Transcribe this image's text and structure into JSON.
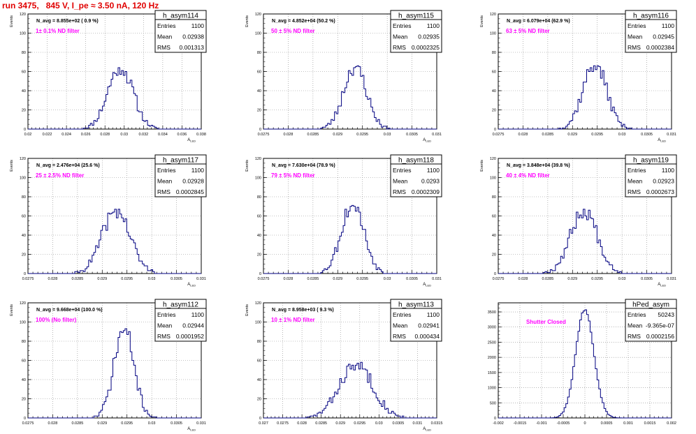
{
  "page_title": "run 3475,   845 V, I_pe ≈ 3.50 nA, 120 Hz",
  "stat_labels": {
    "entries": "Entries",
    "mean": "Mean",
    "rms": "RMS"
  },
  "colors": {
    "histogram": "#000080",
    "annotation": "#ff00ff",
    "title": "#e00000",
    "grid": "#888888"
  },
  "chart_data": [
    {
      "type": "bar",
      "name": "h_asym114",
      "nav": "N_avg = 8.855e+02 ( 0.9 %)",
      "filter": "1± 0.1% ND filter",
      "stats": {
        "entries": "1100",
        "mean": "0.02938",
        "rms": "0.001313"
      },
      "xlim": [
        0.02,
        0.038
      ],
      "ylim": [
        0,
        120
      ],
      "xticks": [
        "0.02",
        "0.022",
        "0.024",
        "0.026",
        "0.028",
        "0.03",
        "0.032",
        "0.034",
        "0.036",
        "0.038"
      ],
      "yticks": [
        "0",
        "20",
        "40",
        "60",
        "80",
        "100",
        "120"
      ],
      "xlabel": "A_LED",
      "ylabel": "Events",
      "peak": 65,
      "mu": 0.0296,
      "sigma": 0.0013,
      "seed": 11
    },
    {
      "type": "bar",
      "name": "h_asym115",
      "nav": "N_avg = 4.852e+04 (50.2 %)",
      "filter": "50 ± 5% ND filter",
      "stats": {
        "entries": "1100",
        "mean": "0.02935",
        "rms": "0.0002325"
      },
      "xlim": [
        0.0275,
        0.031
      ],
      "ylim": [
        0,
        120
      ],
      "xticks": [
        "0.0275",
        "0.028",
        "0.0285",
        "0.029",
        "0.0295",
        "0.03",
        "0.0305",
        "0.031"
      ],
      "yticks": [
        "0",
        "20",
        "40",
        "60",
        "80",
        "100",
        "120"
      ],
      "xlabel": "A_LED",
      "ylabel": "Events",
      "peak": 66,
      "mu": 0.02935,
      "sigma": 0.00023,
      "seed": 23
    },
    {
      "type": "bar",
      "name": "h_asym116",
      "nav": "N_avg = 6.079e+04 (62.9 %)",
      "filter": "63 ± 5% ND filter",
      "stats": {
        "entries": "1100",
        "mean": "0.02945",
        "rms": "0.0002384"
      },
      "xlim": [
        0.0275,
        0.031
      ],
      "ylim": [
        0,
        120
      ],
      "xticks": [
        "0.0275",
        "0.028",
        "0.0285",
        "0.029",
        "0.0295",
        "0.03",
        "0.0305",
        "0.031"
      ],
      "yticks": [
        "0",
        "20",
        "40",
        "60",
        "80",
        "100",
        "120"
      ],
      "xlabel": "A_LED",
      "ylabel": "Events",
      "peak": 68,
      "mu": 0.02945,
      "sigma": 0.00024,
      "seed": 37
    },
    {
      "type": "bar",
      "name": "h_asym117",
      "nav": "N_avg = 2.476e+04 (25.6 %)",
      "filter": "25 ± 2.5% ND filter",
      "stats": {
        "entries": "1100",
        "mean": "0.02928",
        "rms": "0.0002845"
      },
      "xlim": [
        0.0275,
        0.031
      ],
      "ylim": [
        0,
        120
      ],
      "xticks": [
        "0.0275",
        "0.028",
        "0.0285",
        "0.029",
        "0.0295",
        "0.03",
        "0.0305",
        "0.031"
      ],
      "yticks": [
        "0",
        "20",
        "40",
        "60",
        "80",
        "100",
        "120"
      ],
      "xlabel": "A_LED",
      "ylabel": "Events",
      "peak": 66,
      "mu": 0.02928,
      "sigma": 0.00028,
      "seed": 41
    },
    {
      "type": "bar",
      "name": "h_asym118",
      "nav": "N_avg = 7.630e+04 (78.9 %)",
      "filter": "79 ± 5% ND filter",
      "stats": {
        "entries": "1100",
        "mean": "0.0293",
        "rms": "0.0002309"
      },
      "xlim": [
        0.0275,
        0.031
      ],
      "ylim": [
        0,
        120
      ],
      "xticks": [
        "0.0275",
        "0.028",
        "0.0285",
        "0.029",
        "0.0295",
        "0.03",
        "0.0305",
        "0.031"
      ],
      "yticks": [
        "0",
        "20",
        "40",
        "60",
        "80",
        "100",
        "120"
      ],
      "xlabel": "A_LED",
      "ylabel": "Events",
      "peak": 73,
      "mu": 0.0293,
      "sigma": 0.00023,
      "seed": 53
    },
    {
      "type": "bar",
      "name": "h_asym119",
      "nav": "N_avg = 3.848e+04 (39.8 %)",
      "filter": "40 ± 4% ND filter",
      "stats": {
        "entries": "1100",
        "mean": "0.02923",
        "rms": "0.0002673"
      },
      "xlim": [
        0.0275,
        0.031
      ],
      "ylim": [
        0,
        120
      ],
      "xticks": [
        "0.0275",
        "0.028",
        "0.0285",
        "0.029",
        "0.0295",
        "0.03",
        "0.0305",
        "0.031"
      ],
      "yticks": [
        "0",
        "20",
        "40",
        "60",
        "80",
        "100",
        "120"
      ],
      "xlabel": "A_LED",
      "ylabel": "Events",
      "peak": 67,
      "mu": 0.02923,
      "sigma": 0.00027,
      "seed": 67
    },
    {
      "type": "bar",
      "name": "h_asym112",
      "nav": "N_avg = 9.668e+04 (100.0 %)",
      "filter": "100% (No filter)",
      "stats": {
        "entries": "1100",
        "mean": "0.02944",
        "rms": "0.0001952"
      },
      "xlim": [
        0.0275,
        0.031
      ],
      "ylim": [
        0,
        120
      ],
      "xticks": [
        "0.0275",
        "0.028",
        "0.0285",
        "0.029",
        "0.0295",
        "0.03",
        "0.0305",
        "0.031"
      ],
      "yticks": [
        "0",
        "20",
        "40",
        "60",
        "80",
        "100",
        "120"
      ],
      "xlabel": "A_LED",
      "ylabel": "Events",
      "peak": 93,
      "mu": 0.02944,
      "sigma": 0.0002,
      "seed": 71
    },
    {
      "type": "bar",
      "name": "h_asym113",
      "nav": "N_avg = 8.958e+03 ( 9.3 %)",
      "filter": "10 ± 1% ND filter",
      "stats": {
        "entries": "1100",
        "mean": "0.02941",
        "rms": "0.000434"
      },
      "xlim": [
        0.027,
        0.0315
      ],
      "ylim": [
        0,
        120
      ],
      "xticks": [
        "0.027",
        "0.0275",
        "0.028",
        "0.0285",
        "0.029",
        "0.0295",
        "0.03",
        "0.0305",
        "0.031",
        "0.0315"
      ],
      "yticks": [
        "0",
        "20",
        "40",
        "60",
        "80",
        "100",
        "120"
      ],
      "xlabel": "A_LED",
      "ylabel": "Events",
      "peak": 57,
      "mu": 0.02941,
      "sigma": 0.00043,
      "seed": 83
    },
    {
      "type": "bar",
      "name": "hPed_asym",
      "nav": "",
      "filter": "Shutter Closed",
      "stats": {
        "entries": "50243",
        "mean": "-9.365e-07",
        "rms": "0.0002156"
      },
      "xlim": [
        -0.002,
        0.002
      ],
      "ylim": [
        0,
        3800
      ],
      "xticks": [
        "-0.002",
        "-0.0015",
        "-0.001",
        "-0.0005",
        "0",
        "0.0005",
        "0.001",
        "0.0015",
        "0.002"
      ],
      "yticks": [
        "0",
        "500",
        "1000",
        "1500",
        "2000",
        "2500",
        "3000",
        "3500"
      ],
      "xlabel": "",
      "ylabel": "",
      "peak": 3600,
      "mu": 0,
      "sigma": 0.00021,
      "seed": 97
    }
  ]
}
